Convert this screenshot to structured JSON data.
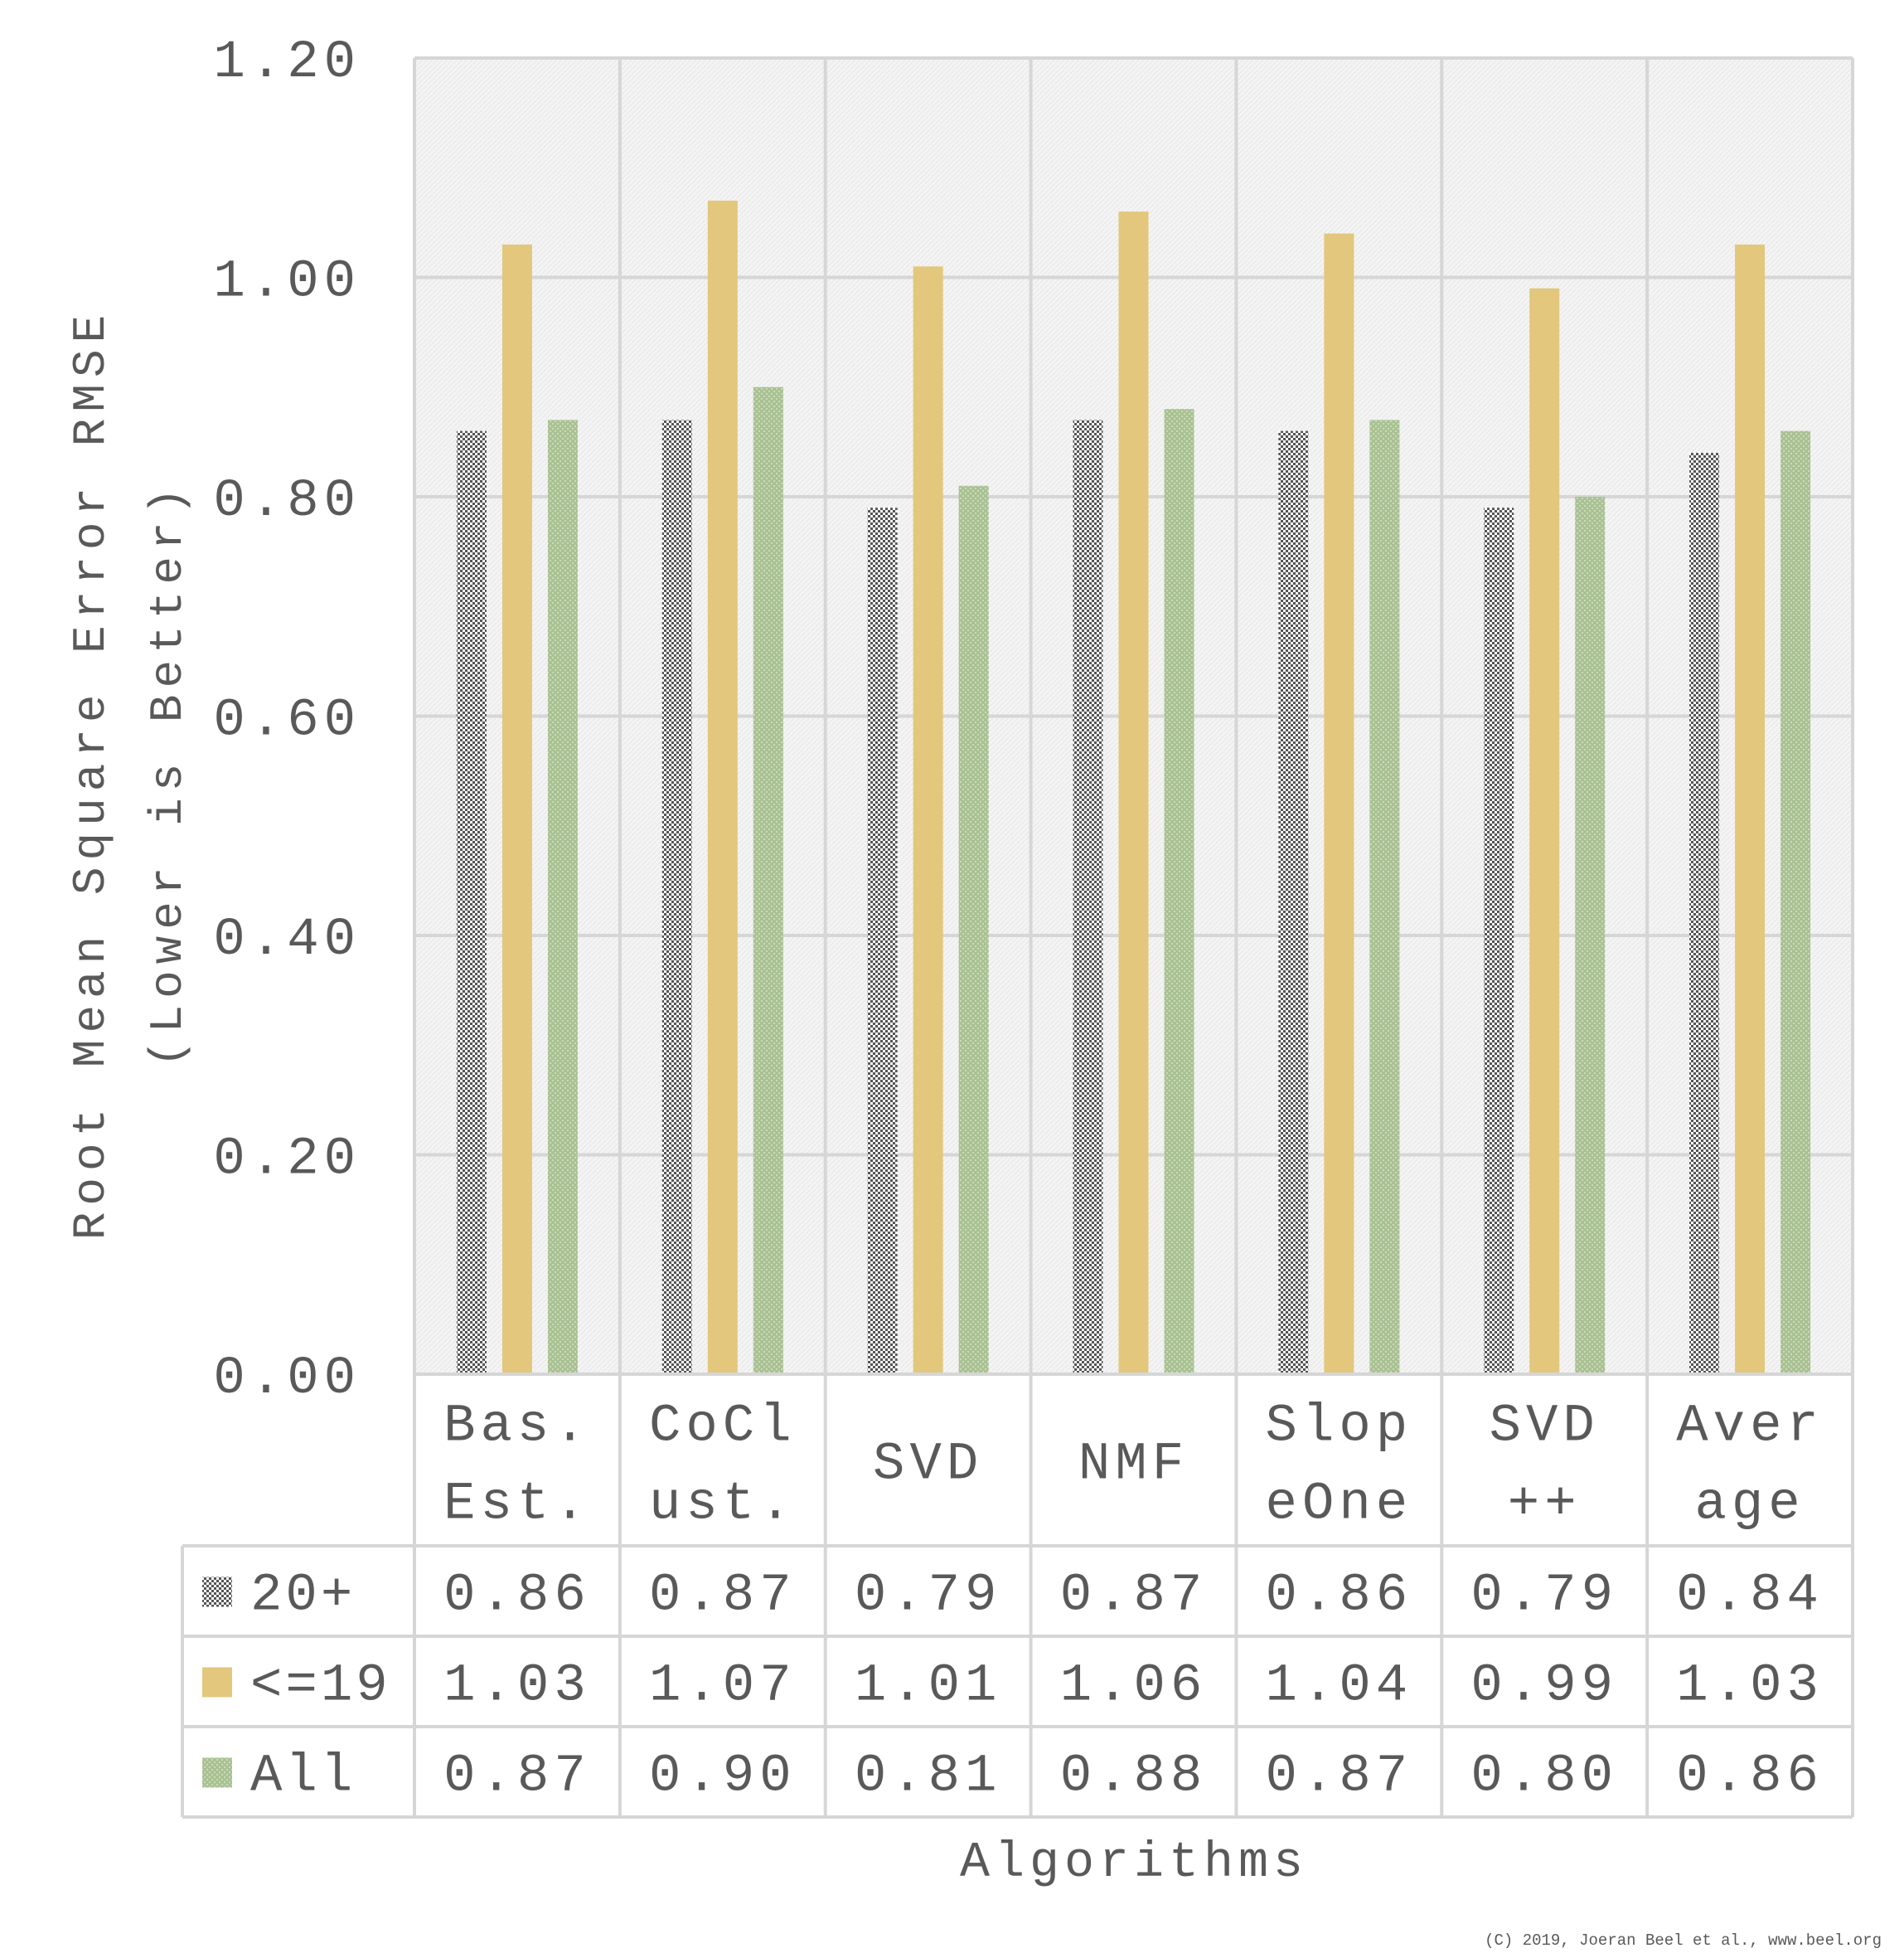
{
  "chart_data": {
    "type": "bar",
    "xlabel": "Algorithms",
    "ylabel_line1": "Root Mean Square Error RMSE",
    "ylabel_line2": "(Lower is Better)",
    "ylim": [
      0,
      1.2
    ],
    "yticks": [
      "0.00",
      "0.20",
      "0.40",
      "0.60",
      "0.80",
      "1.00",
      "1.20"
    ],
    "categories": [
      [
        "Bas.",
        "Est."
      ],
      [
        "CoCl",
        "ust."
      ],
      [
        "SVD"
      ],
      [
        "NMF"
      ],
      [
        "Slop",
        "eOne"
      ],
      [
        "SVD",
        "++"
      ],
      [
        "Aver",
        "age"
      ]
    ],
    "series": [
      {
        "name": "20+",
        "color": "#555555",
        "pattern": "checker",
        "values": [
          0.86,
          0.87,
          0.79,
          0.87,
          0.86,
          0.79,
          0.84
        ],
        "labels": [
          "0.86",
          "0.87",
          "0.79",
          "0.87",
          "0.86",
          "0.79",
          "0.84"
        ]
      },
      {
        "name": "<=19",
        "color": "#e2c77c",
        "pattern": "solid",
        "values": [
          1.03,
          1.07,
          1.01,
          1.06,
          1.04,
          0.99,
          1.03
        ],
        "labels": [
          "1.03",
          "1.07",
          "1.01",
          "1.06",
          "1.04",
          "0.99",
          "1.03"
        ]
      },
      {
        "name": "All",
        "color": "#a9c193",
        "pattern": "dotted",
        "values": [
          0.87,
          0.9,
          0.81,
          0.88,
          0.87,
          0.8,
          0.86
        ],
        "labels": [
          "0.87",
          "0.90",
          "0.81",
          "0.88",
          "0.87",
          "0.80",
          "0.86"
        ]
      }
    ],
    "data_table": true,
    "grid": true,
    "legend": "in data table"
  },
  "footer": {
    "copyright": "(C) 2019, Joeran Beel et al., www.beel.org"
  }
}
